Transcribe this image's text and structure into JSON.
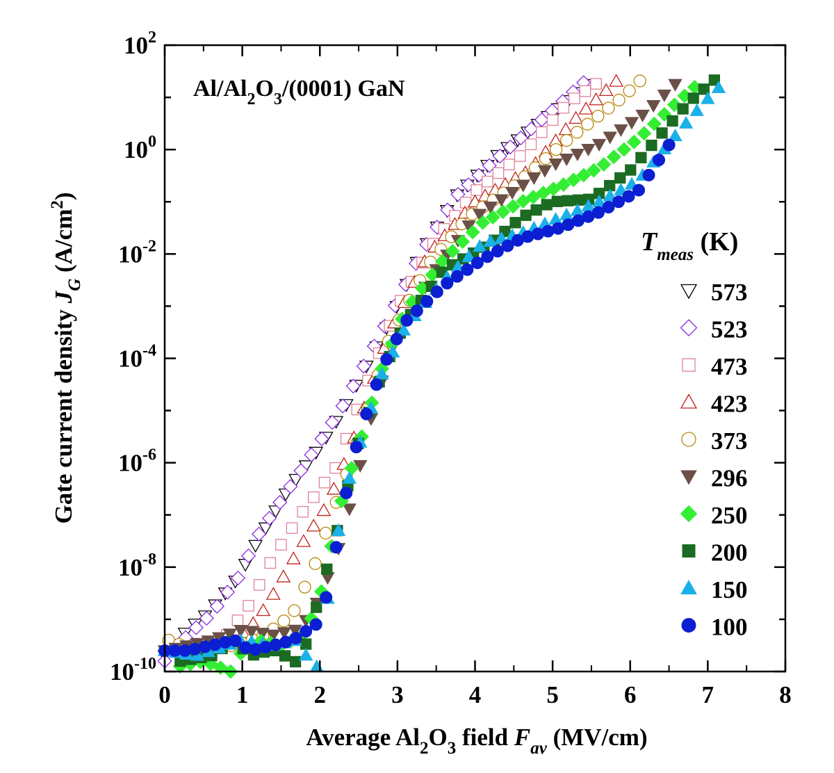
{
  "chart_data": {
    "type": "scatter",
    "title": "Al/Al₂O₃/(0001) GaN",
    "title_parts": {
      "a": "Al/Al",
      "a_sub": "2",
      "b": "O",
      "b_sub": "3",
      "c": "/(0001) GaN"
    },
    "xlabel": "Average Al₂O₃ field F_av (MV/cm)",
    "xlabel_parts": {
      "a": "Average Al",
      "a_sub": "2",
      "b": "O",
      "b_sub": "3",
      "c": " field ",
      "var": "F",
      "var_sub": "av",
      "unit": " (MV/cm)"
    },
    "ylabel": "Gate current density J_G (A/cm²)",
    "ylabel_parts": {
      "a": "Gate current density ",
      "var": "J",
      "var_sub": "G",
      "unit": " (A/cm",
      "unit_sup": "2",
      "unit_end": ")"
    },
    "xlim": [
      0,
      8
    ],
    "ylim": [
      1e-10,
      100
    ],
    "yscale": "log",
    "xticks": [
      "0",
      "1",
      "2",
      "3",
      "4",
      "5",
      "6",
      "7",
      "8"
    ],
    "yticks": [
      {
        "base": "10",
        "exp": "2"
      },
      {
        "base": "10",
        "exp": "0"
      },
      {
        "base": "10",
        "exp": "-2"
      },
      {
        "base": "10",
        "exp": "-4"
      },
      {
        "base": "10",
        "exp": "-6"
      },
      {
        "base": "10",
        "exp": "-8"
      },
      {
        "base": "10",
        "exp": "-10"
      }
    ],
    "legend": {
      "title_var": "T",
      "title_sub": "meas",
      "title_unit": " (K)",
      "placement": "right"
    },
    "series": [
      {
        "name": "573",
        "marker": "triangle-down",
        "filled": false,
        "color": "#000000",
        "edges": [
          [
            0.0,
            -9.7
          ],
          [
            0.3,
            -9.2
          ],
          [
            0.55,
            -8.9
          ],
          [
            0.95,
            -8.2
          ],
          [
            1.2,
            -7.5
          ],
          [
            1.6,
            -6.5
          ],
          [
            2.0,
            -5.7
          ],
          [
            2.3,
            -5.0
          ],
          [
            2.9,
            -3.3
          ],
          [
            3.3,
            -2.0
          ],
          [
            3.75,
            -0.9
          ],
          [
            4.3,
            -0.1
          ],
          [
            5.0,
            0.7
          ],
          [
            5.55,
            1.35
          ]
        ]
      },
      {
        "name": "523",
        "marker": "diamond",
        "filled": false,
        "color": "#8a2be2",
        "edges": [
          [
            0.0,
            -9.8
          ],
          [
            0.3,
            -9.3
          ],
          [
            0.6,
            -8.9
          ],
          [
            0.95,
            -8.2
          ],
          [
            1.2,
            -7.4
          ],
          [
            1.6,
            -6.5
          ],
          [
            2.0,
            -5.6
          ],
          [
            2.3,
            -4.9
          ],
          [
            2.9,
            -3.2
          ],
          [
            3.3,
            -2.0
          ],
          [
            3.75,
            -0.9
          ],
          [
            4.3,
            -0.15
          ],
          [
            5.0,
            0.75
          ],
          [
            5.45,
            1.35
          ]
        ]
      },
      {
        "name": "473",
        "marker": "square",
        "filled": false,
        "color": "#e08098",
        "edges": [
          [
            0.1,
            -9.6
          ],
          [
            0.5,
            -9.6
          ],
          [
            0.8,
            -9.3
          ],
          [
            1.1,
            -8.7
          ],
          [
            1.4,
            -7.8
          ],
          [
            1.75,
            -7.0
          ],
          [
            2.2,
            -6.1
          ],
          [
            2.6,
            -4.5
          ],
          [
            3.0,
            -3.0
          ],
          [
            3.5,
            -1.7
          ],
          [
            4.0,
            -0.8
          ],
          [
            4.6,
            -0.1
          ],
          [
            5.2,
            0.9
          ],
          [
            5.65,
            1.35
          ]
        ]
      },
      {
        "name": "423",
        "marker": "triangle-up",
        "filled": false,
        "color": "#c0201a",
        "edges": [
          [
            0.1,
            -9.6
          ],
          [
            0.5,
            -9.6
          ],
          [
            0.9,
            -9.4
          ],
          [
            1.2,
            -9.0
          ],
          [
            1.45,
            -8.4
          ],
          [
            1.75,
            -7.6
          ],
          [
            2.1,
            -6.8
          ],
          [
            2.4,
            -5.7
          ],
          [
            2.9,
            -3.5
          ],
          [
            3.4,
            -2.0
          ],
          [
            4.0,
            -1.0
          ],
          [
            4.7,
            -0.4
          ],
          [
            5.3,
            0.6
          ],
          [
            5.85,
            1.35
          ]
        ]
      },
      {
        "name": "373",
        "marker": "circle",
        "filled": false,
        "color": "#b8860b",
        "edges": [
          [
            0.05,
            -9.4
          ],
          [
            0.4,
            -9.6
          ],
          [
            0.9,
            -9.5
          ],
          [
            1.3,
            -9.3
          ],
          [
            1.65,
            -8.9
          ],
          [
            1.95,
            -7.9
          ],
          [
            2.2,
            -6.8
          ],
          [
            2.4,
            -6.0
          ],
          [
            2.9,
            -3.6
          ],
          [
            3.4,
            -2.2
          ],
          [
            3.9,
            -1.3
          ],
          [
            4.5,
            -0.7
          ],
          [
            5.2,
            0.2
          ],
          [
            5.9,
            1.0
          ],
          [
            6.15,
            1.35
          ]
        ]
      },
      {
        "name": "296",
        "marker": "triangle-down",
        "filled": true,
        "color": "#6b5048",
        "edges": [
          [
            0.0,
            -9.6
          ],
          [
            0.6,
            -9.4
          ],
          [
            1.0,
            -9.2
          ],
          [
            1.4,
            -9.3
          ],
          [
            1.7,
            -9.2
          ],
          [
            1.9,
            -8.9
          ],
          [
            2.1,
            -8.2
          ],
          [
            2.25,
            -7.6
          ],
          [
            2.45,
            -6.5
          ],
          [
            2.7,
            -4.9
          ],
          [
            3.0,
            -3.5
          ],
          [
            3.5,
            -2.3
          ],
          [
            4.0,
            -1.3
          ],
          [
            4.5,
            -0.8
          ],
          [
            5.0,
            -0.3
          ],
          [
            5.6,
            0.1
          ],
          [
            6.2,
            0.7
          ],
          [
            6.65,
            1.35
          ]
        ]
      },
      {
        "name": "250",
        "marker": "diamond",
        "filled": true,
        "color": "#33ee33",
        "edges": [
          [
            0.2,
            -9.9
          ],
          [
            0.5,
            -9.8
          ],
          [
            0.85,
            -10.0
          ],
          [
            1.0,
            -9.6
          ],
          [
            1.2,
            -9.4
          ],
          [
            1.5,
            -9.5
          ],
          [
            1.8,
            -9.3
          ],
          [
            2.0,
            -8.6
          ],
          [
            2.15,
            -7.6
          ],
          [
            2.3,
            -6.6
          ],
          [
            2.5,
            -5.7
          ],
          [
            2.8,
            -4.2
          ],
          [
            3.1,
            -3.1
          ],
          [
            3.6,
            -2.1
          ],
          [
            4.1,
            -1.4
          ],
          [
            4.6,
            -1.0
          ],
          [
            5.1,
            -0.7
          ],
          [
            5.6,
            -0.35
          ],
          [
            6.1,
            0.2
          ],
          [
            6.6,
            0.9
          ],
          [
            6.95,
            1.35
          ]
        ]
      },
      {
        "name": "200",
        "marker": "square",
        "filled": true,
        "color": "#1b6b22",
        "edges": [
          [
            0.2,
            -9.8
          ],
          [
            0.6,
            -9.7
          ],
          [
            0.9,
            -9.4
          ],
          [
            1.1,
            -9.7
          ],
          [
            1.35,
            -9.6
          ],
          [
            1.5,
            -9.6
          ],
          [
            1.65,
            -9.9
          ],
          [
            1.85,
            -9.4
          ],
          [
            2.05,
            -8.2
          ],
          [
            2.15,
            -7.8
          ],
          [
            2.3,
            -6.8
          ],
          [
            2.5,
            -5.6
          ],
          [
            2.8,
            -4.3
          ],
          [
            3.1,
            -3.3
          ],
          [
            3.6,
            -2.3
          ],
          [
            4.2,
            -1.8
          ],
          [
            4.6,
            -1.3
          ],
          [
            5.0,
            -1.0
          ],
          [
            5.5,
            -0.95
          ],
          [
            6.0,
            -0.4
          ],
          [
            6.4,
            0.3
          ],
          [
            6.75,
            0.9
          ],
          [
            7.1,
            1.35
          ]
        ]
      },
      {
        "name": "150",
        "marker": "triangle-up",
        "filled": true,
        "color": "#1ab0e8",
        "edges": [
          [
            0.0,
            -9.6
          ],
          [
            0.4,
            -9.7
          ],
          [
            0.8,
            -9.5
          ],
          [
            1.0,
            -9.4
          ],
          [
            1.4,
            -9.5
          ],
          [
            1.7,
            -9.4
          ],
          [
            1.95,
            -10.0
          ],
          [
            2.1,
            -8.6
          ],
          [
            2.2,
            -7.7
          ],
          [
            2.3,
            -6.7
          ],
          [
            2.5,
            -5.7
          ],
          [
            2.8,
            -4.3
          ],
          [
            3.1,
            -3.4
          ],
          [
            3.6,
            -2.5
          ],
          [
            4.1,
            -1.8
          ],
          [
            4.6,
            -1.6
          ],
          [
            5.1,
            -1.3
          ],
          [
            5.6,
            -1.0
          ],
          [
            6.1,
            -0.6
          ],
          [
            6.6,
            0.3
          ],
          [
            6.95,
            0.9
          ],
          [
            7.25,
            1.35
          ]
        ]
      },
      {
        "name": "100",
        "marker": "circle",
        "filled": true,
        "color": "#0c1ed2",
        "edges": [
          [
            0.0,
            -9.6
          ],
          [
            0.3,
            -9.6
          ],
          [
            0.6,
            -9.5
          ],
          [
            0.9,
            -9.4
          ],
          [
            1.1,
            -9.6
          ],
          [
            1.4,
            -9.5
          ],
          [
            1.65,
            -9.4
          ],
          [
            1.95,
            -9.1
          ],
          [
            2.1,
            -8.5
          ],
          [
            2.2,
            -7.7
          ],
          [
            2.35,
            -6.5
          ],
          [
            2.5,
            -5.5
          ],
          [
            2.8,
            -4.2
          ],
          [
            3.1,
            -3.3
          ],
          [
            3.6,
            -2.6
          ],
          [
            4.1,
            -2.1
          ],
          [
            4.6,
            -1.7
          ],
          [
            5.1,
            -1.5
          ],
          [
            5.6,
            -1.2
          ],
          [
            6.1,
            -0.8
          ],
          [
            6.55,
            0.2
          ]
        ]
      }
    ]
  }
}
